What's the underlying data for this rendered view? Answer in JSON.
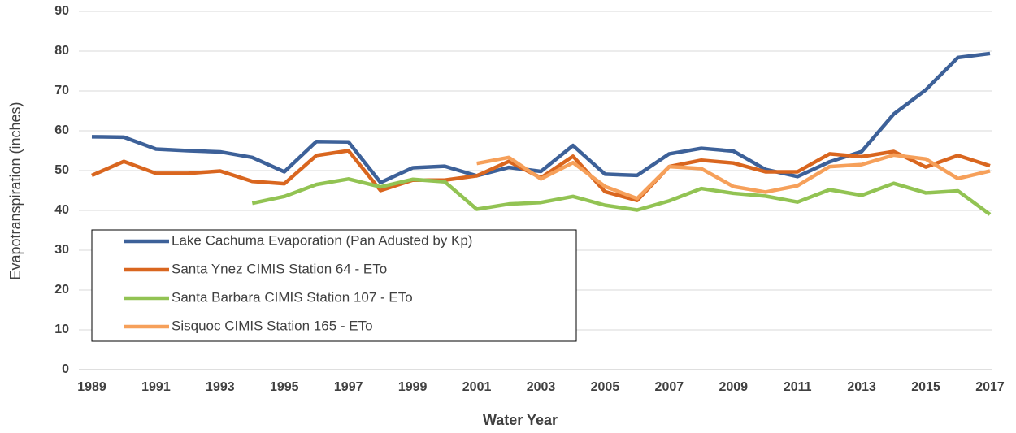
{
  "chart_data": {
    "type": "line",
    "x_label": "Water Year",
    "y_label": "Evapotranspiration (inches)",
    "x": [
      1989,
      1990,
      1991,
      1992,
      1993,
      1994,
      1995,
      1996,
      1997,
      1998,
      1999,
      2000,
      2001,
      2002,
      2003,
      2004,
      2005,
      2006,
      2007,
      2008,
      2009,
      2010,
      2011,
      2012,
      2013,
      2014,
      2015,
      2016,
      2017
    ],
    "xlim": [
      1989,
      2017
    ],
    "xticks": [
      1989,
      1991,
      1993,
      1995,
      1997,
      1999,
      2001,
      2003,
      2005,
      2007,
      2009,
      2011,
      2013,
      2015,
      2017
    ],
    "ylim": [
      0,
      90
    ],
    "yticks": [
      0,
      10,
      20,
      30,
      40,
      50,
      60,
      70,
      80,
      90
    ],
    "grid": true,
    "legend": "lower left",
    "series": [
      {
        "name": "Lake Cachuma Evaporation (Pan Adusted by Kp)",
        "color": "#3d6199",
        "values": [
          58.5,
          58.4,
          55.4,
          55.0,
          54.7,
          53.3,
          49.7,
          57.3,
          57.2,
          47.0,
          50.7,
          51.1,
          48.7,
          50.8,
          49.8,
          56.3,
          49.1,
          48.8,
          54.2,
          55.6,
          54.9,
          50.3,
          48.5,
          52.2,
          54.8,
          64.2,
          70.3,
          78.4,
          79.4
        ]
      },
      {
        "name": "Santa Ynez CIMIS Station 64 - ETo",
        "color": "#d9661f",
        "values": [
          48.8,
          52.3,
          49.3,
          49.3,
          49.9,
          47.3,
          46.7,
          53.8,
          55.0,
          45.0,
          47.6,
          47.6,
          48.7,
          52.3,
          48.2,
          53.6,
          44.7,
          42.5,
          51.0,
          52.6,
          51.9,
          49.7,
          49.7,
          54.2,
          53.5,
          54.8,
          50.9,
          53.8,
          51.2
        ]
      },
      {
        "name": "Santa Barbara CIMIS Station 107 - ETo",
        "color": "#92c353",
        "values": [
          null,
          null,
          null,
          null,
          null,
          41.8,
          43.5,
          46.5,
          47.9,
          45.9,
          47.8,
          47.2,
          40.3,
          41.6,
          42.0,
          43.5,
          41.3,
          40.1,
          42.4,
          45.5,
          44.3,
          43.6,
          42.1,
          45.2,
          43.8,
          46.8,
          44.4,
          44.9,
          39.0
        ]
      },
      {
        "name": "Sisquoc CIMIS Station 165 - ETo",
        "color": "#f6a05a",
        "values": [
          null,
          null,
          null,
          null,
          null,
          null,
          null,
          null,
          null,
          null,
          null,
          null,
          51.8,
          53.3,
          47.9,
          52.0,
          46.0,
          43.0,
          51.0,
          50.5,
          46.0,
          44.6,
          46.2,
          51.0,
          51.5,
          53.9,
          52.9,
          48.0,
          49.9
        ]
      }
    ]
  }
}
